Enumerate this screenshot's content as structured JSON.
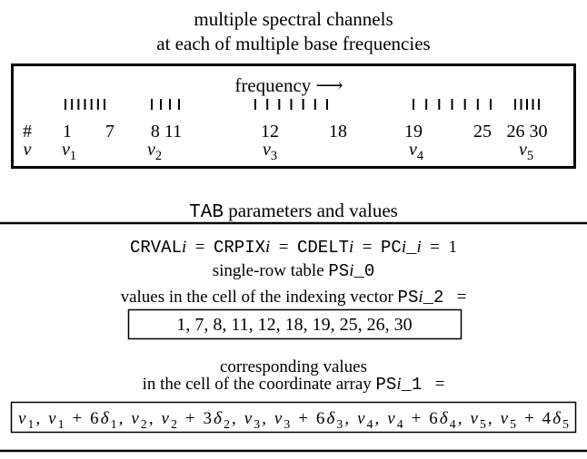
{
  "title": [
    "multiple spectral channels",
    "at each of multiple base frequencies"
  ],
  "axis_label": "frequency ⟶",
  "channel_numbers": [
    "#",
    "1",
    "7",
    "8 11",
    "12",
    "18",
    "19",
    "25",
    "26 30"
  ],
  "frequency_labels": [
    [
      {
        "text": "ν",
        "style": "italic"
      }
    ],
    [
      {
        "text": "ν",
        "style": "italic"
      },
      {
        "text": "1",
        "style": "sub"
      }
    ],
    [
      {
        "text": "ν",
        "style": "italic"
      },
      {
        "text": "2",
        "style": "sub"
      }
    ],
    [
      {
        "text": "ν",
        "style": "italic"
      },
      {
        "text": "3",
        "style": "sub"
      }
    ],
    [
      {
        "text": "ν",
        "style": "italic"
      },
      {
        "text": "4",
        "style": "sub"
      }
    ],
    [
      {
        "text": "ν",
        "style": "italic"
      },
      {
        "text": "5",
        "style": "sub"
      }
    ]
  ],
  "section_title": [
    {
      "text": "TAB",
      "style": "mono"
    },
    {
      "text": " parameters and values"
    }
  ],
  "parameter_line": [
    {
      "text": "CRVAL",
      "style": "mono"
    },
    {
      "text": "i",
      "style": "italic"
    },
    {
      "text": "  =  "
    },
    {
      "text": "CRPIX",
      "style": "mono"
    },
    {
      "text": "i",
      "style": "italic"
    },
    {
      "text": "  =  "
    },
    {
      "text": "CDELT",
      "style": "mono"
    },
    {
      "text": "i",
      "style": "italic"
    },
    {
      "text": "  =  "
    },
    {
      "text": "PC",
      "style": "mono"
    },
    {
      "text": "i",
      "style": "italic"
    },
    {
      "text": "_",
      "style": "mono"
    },
    {
      "text": "i",
      "style": "italic"
    },
    {
      "text": "  =  1"
    }
  ],
  "table_line": [
    {
      "text": "single-row table "
    },
    {
      "text": "PS",
      "style": "mono"
    },
    {
      "text": "i",
      "style": "italic"
    },
    {
      "text": "_0",
      "style": "mono"
    }
  ],
  "index_line": [
    {
      "text": "values in the cell of the indexing vector "
    },
    {
      "text": "PS",
      "style": "mono"
    },
    {
      "text": "i",
      "style": "italic"
    },
    {
      "text": "_2",
      "style": "mono"
    },
    {
      "text": "   ="
    }
  ],
  "index_values": "1, 7, 8, 11, 12, 18, 19, 25, 26, 30",
  "coordinate_intro": "corresponding values",
  "coordinate_line": [
    {
      "text": "in the cell of the coordinate array "
    },
    {
      "text": "PS",
      "style": "mono"
    },
    {
      "text": "i",
      "style": "italic"
    },
    {
      "text": "_1",
      "style": "mono"
    },
    {
      "text": "   ="
    }
  ],
  "coordinate_values": [
    {
      "text": "ν",
      "style": "italic"
    },
    {
      "text": "1",
      "style": "sub"
    },
    {
      "text": ", "
    },
    {
      "text": "ν",
      "style": "italic"
    },
    {
      "text": "1",
      "style": "sub"
    },
    {
      "text": " + 6"
    },
    {
      "text": "δ",
      "style": "italic"
    },
    {
      "text": "1",
      "style": "sub"
    },
    {
      "text": ", "
    },
    {
      "text": "ν",
      "style": "italic"
    },
    {
      "text": "2",
      "style": "sub"
    },
    {
      "text": ", "
    },
    {
      "text": "ν",
      "style": "italic"
    },
    {
      "text": "2",
      "style": "sub"
    },
    {
      "text": " + 3"
    },
    {
      "text": "δ",
      "style": "italic"
    },
    {
      "text": "2",
      "style": "sub"
    },
    {
      "text": ", "
    },
    {
      "text": "ν",
      "style": "italic"
    },
    {
      "text": "3",
      "style": "sub"
    },
    {
      "text": ", "
    },
    {
      "text": "ν",
      "style": "italic"
    },
    {
      "text": "3",
      "style": "sub"
    },
    {
      "text": " + 6"
    },
    {
      "text": "δ",
      "style": "italic"
    },
    {
      "text": "3",
      "style": "sub"
    },
    {
      "text": ", "
    },
    {
      "text": "ν",
      "style": "italic"
    },
    {
      "text": "4",
      "style": "sub"
    },
    {
      "text": ", "
    },
    {
      "text": "ν",
      "style": "italic"
    },
    {
      "text": "4",
      "style": "sub"
    },
    {
      "text": " + 6"
    },
    {
      "text": "δ",
      "style": "italic"
    },
    {
      "text": "4",
      "style": "sub"
    },
    {
      "text": ", "
    },
    {
      "text": "ν",
      "style": "italic"
    },
    {
      "text": "5",
      "style": "sub"
    },
    {
      "text": ", "
    },
    {
      "text": "ν",
      "style": "italic"
    },
    {
      "text": "5",
      "style": "sub"
    },
    {
      "text": " + 4"
    },
    {
      "text": "δ",
      "style": "italic"
    },
    {
      "text": "5",
      "style": "sub"
    }
  ]
}
